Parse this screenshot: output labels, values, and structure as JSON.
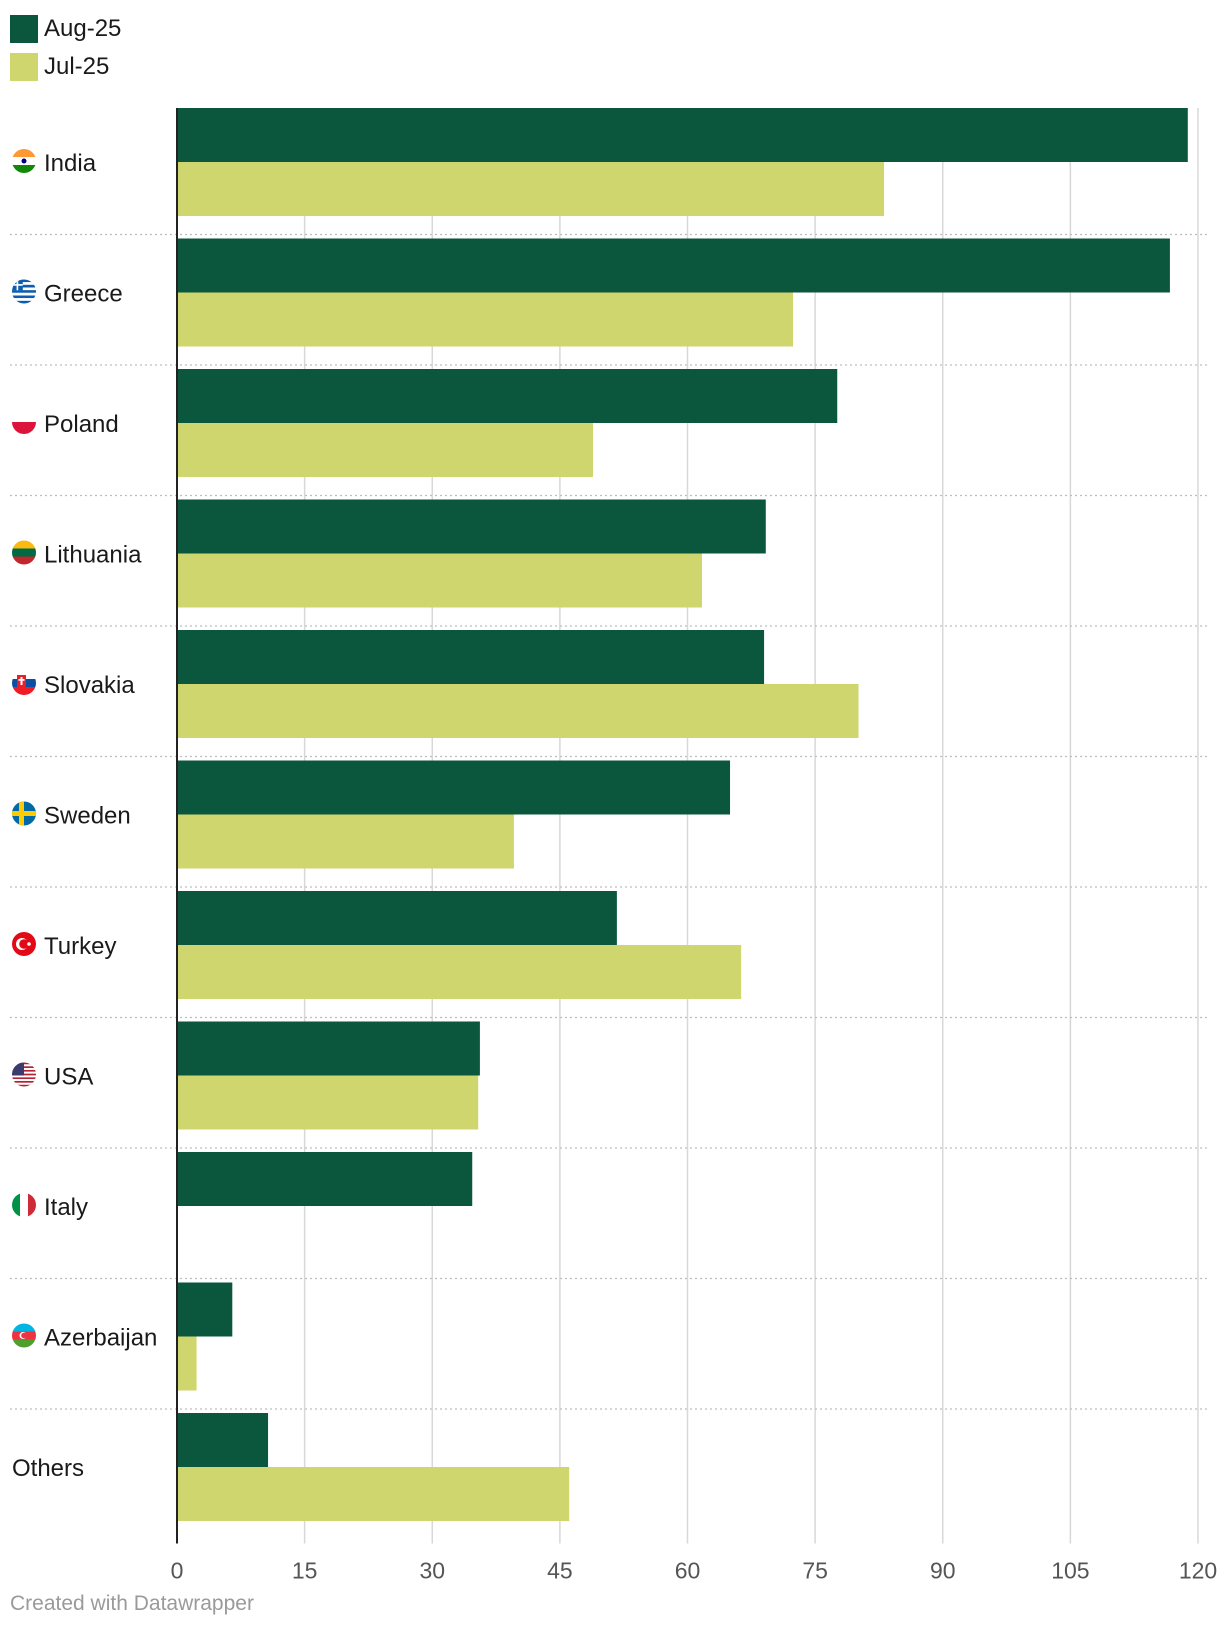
{
  "colors": {
    "aug": "#0a573d",
    "jul": "#cfd66d",
    "grid": "#d8d8d8",
    "axis": "#222222",
    "tick": "#555555"
  },
  "legend": [
    {
      "label": "Aug-25",
      "color": "#0a573d"
    },
    {
      "label": "Jul-25",
      "color": "#cfd66d"
    }
  ],
  "chart_data": {
    "type": "bar",
    "orientation": "horizontal",
    "xlim": [
      0,
      120
    ],
    "ticks": [
      "0",
      "15",
      "30",
      "45",
      "60",
      "75",
      "90",
      "105",
      "120"
    ],
    "categories": [
      "India",
      "Greece",
      "Poland",
      "Lithuania",
      "Slovakia",
      "Sweden",
      "Turkey",
      "USA",
      "Italy",
      "Azerbaijan",
      "Others"
    ],
    "flags": [
      "india-flag-icon",
      "greece-flag-icon",
      "poland-flag-icon",
      "lithuania-flag-icon",
      "slovakia-flag-icon",
      "sweden-flag-icon",
      "turkey-flag-icon",
      "usa-flag-icon",
      "italy-flag-icon",
      "azerbaijan-flag-icon",
      ""
    ],
    "series": [
      {
        "name": "Aug-25",
        "values": [
          118.8,
          116.7,
          77.6,
          69.2,
          69.0,
          65.0,
          51.7,
          35.6,
          34.7,
          6.5,
          10.7
        ]
      },
      {
        "name": "Jul-25",
        "values": [
          83.1,
          72.4,
          48.9,
          61.7,
          80.1,
          39.6,
          66.3,
          35.4,
          null,
          2.3,
          46.1
        ]
      }
    ]
  },
  "footer": {
    "credit": "Created with Datawrapper"
  }
}
